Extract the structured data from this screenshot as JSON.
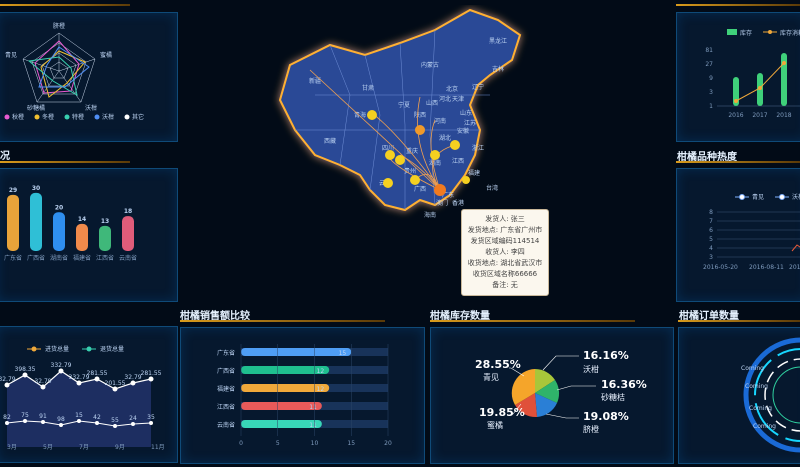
{
  "titles": {
    "top_left_fragment": "况",
    "variety_heat": "柑橘品种热度",
    "sales_compare": "柑橘销售额比较",
    "inventory": "柑橘库存数量",
    "orders": "柑橘订单数量"
  },
  "radar": {
    "axes": [
      "脐橙",
      "蜜橘",
      "沃柑",
      "砂糖橘",
      "青见"
    ],
    "legend": [
      "秋橙",
      "冬橙",
      "特橙",
      "沃柑",
      "其它"
    ]
  },
  "bar_chart_left": {
    "values": [
      29,
      30,
      20,
      14,
      13,
      18
    ],
    "categories": [
      "广东省",
      "广西省",
      "湖南省",
      "福建省",
      "江西省",
      "云南省"
    ],
    "colors": [
      "#e8a33a",
      "#2fbfd6",
      "#2f8ff0",
      "#f08a4b",
      "#3fb87a",
      "#e05c7a"
    ]
  },
  "map": {
    "labels": [
      "黑龙江",
      "吉林",
      "辽宁",
      "内蒙古",
      "北京",
      "天津",
      "河北",
      "山西",
      "山东",
      "河南",
      "陕西",
      "宁夏",
      "甘肃",
      "青海",
      "新疆",
      "西藏",
      "四川",
      "重庆",
      "湖北",
      "安徽",
      "江苏",
      "浙江",
      "湖南",
      "江西",
      "福建",
      "贵州",
      "云南",
      "广西",
      "广东",
      "海南",
      "台湾",
      "香港",
      "澳门"
    ],
    "tooltip": [
      "发货人: 张三",
      "发货地点: 广东省广州市",
      "发货区域编码114514",
      "收货人: 李四",
      "收货地点: 湖北省武汉市",
      "收货区域名称66666",
      "备注: 无"
    ]
  },
  "inventory_top": {
    "legend": [
      "库存",
      "库存消耗比"
    ],
    "years": [
      "2016",
      "2017",
      "2018"
    ],
    "yticks": [
      "81",
      "27",
      "9",
      "3",
      "1"
    ]
  },
  "variety_heat": {
    "legend": [
      "青见",
      "沃柑"
    ],
    "yticks": [
      "8",
      "7",
      "6",
      "5",
      "4",
      "3"
    ],
    "xticks": [
      "2016-05-20",
      "2016-08-11",
      "2016-1"
    ]
  },
  "line_chart": {
    "legend": [
      "进货总量",
      "退货总量"
    ],
    "months": [
      "3月",
      "5月",
      "7月",
      "9月",
      "11月"
    ],
    "series_top": [
      "32.79",
      "398.35",
      "32.79",
      "332.79",
      "332.79",
      "281.55",
      "201.55",
      "32.79",
      "281.55"
    ],
    "series_bottom": [
      "82",
      "75",
      "91",
      "98",
      "15",
      "42",
      "55",
      "24",
      "35"
    ],
    "mid_labels": [
      "201.55",
      "398.35"
    ]
  },
  "sales_compare": {
    "provinces": [
      "广东省",
      "广西省",
      "福建省",
      "江西省",
      "云南省"
    ],
    "values": [
      15,
      12,
      12,
      11,
      11
    ],
    "colors": [
      "#4f9ef5",
      "#1fbf8f",
      "#f0a83a",
      "#e85a5a",
      "#38d6b8"
    ],
    "xticks": [
      "0",
      "5",
      "10",
      "15",
      "20"
    ],
    "xmax": 20
  },
  "inventory_pie": {
    "slices": [
      {
        "pct": "28.55%",
        "name": "青见",
        "color": "#f5a52a"
      },
      {
        "pct": "16.16%",
        "name": "沃柑",
        "color": "#a8c63a"
      },
      {
        "pct": "16.36%",
        "name": "砂糖桔",
        "color": "#2fb36a"
      },
      {
        "pct": "19.08%",
        "name": "脐橙",
        "color": "#2a7fd6"
      },
      {
        "pct": "19.85%",
        "name": "蜜橘",
        "color": "#e0503a"
      }
    ]
  },
  "orders": {
    "ring_labels": [
      "Coming",
      "Coming",
      "Coming",
      "Coming"
    ]
  }
}
